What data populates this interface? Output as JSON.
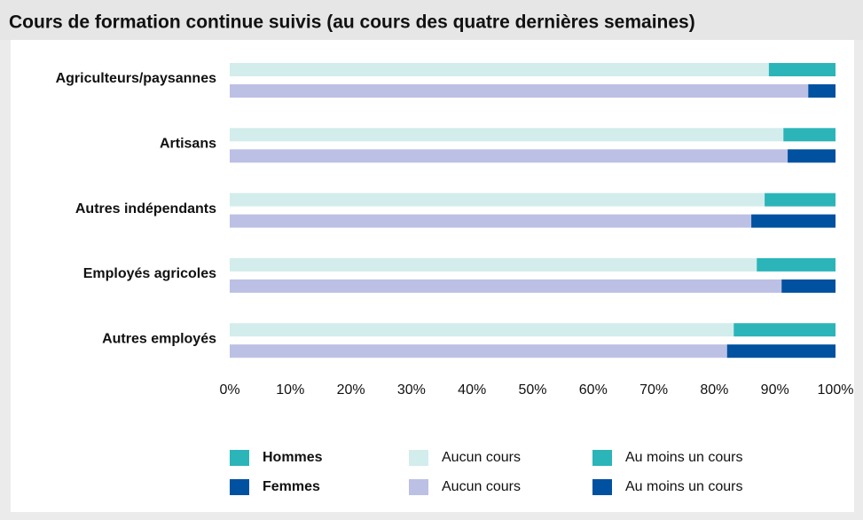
{
  "chart_data": {
    "type": "stacked-barh",
    "title": "Cours de formation continue suivis (au cours des quatre dernières semaines)",
    "categories": [
      "Agriculteurs/paysannes",
      "Artisans",
      "Autres indépendants",
      "Employés agricoles",
      "Autres employés"
    ],
    "groups": [
      "Hommes",
      "Femmes"
    ],
    "series": [
      {
        "name": "Aucun cours",
        "group": "Hommes",
        "color": "#d3ecec",
        "values": [
          89,
          91.4,
          88.3,
          87,
          83.2
        ]
      },
      {
        "name": "Au moins un cours",
        "group": "Hommes",
        "color": "#2bb5b8",
        "values": [
          11,
          8.6,
          11.7,
          13,
          16.8
        ]
      },
      {
        "name": "Aucun cours",
        "group": "Femmes",
        "color": "#bcc0e4",
        "values": [
          95.5,
          92.1,
          86.1,
          91.1,
          82.1
        ]
      },
      {
        "name": "Au moins un cours",
        "group": "Femmes",
        "color": "#0051a0",
        "values": [
          4.5,
          7.9,
          13.9,
          8.9,
          17.9
        ]
      }
    ],
    "xlim": [
      0,
      100
    ],
    "xticks": [
      {
        "value": 0,
        "label": "0%"
      },
      {
        "value": 10,
        "label": "10%"
      },
      {
        "value": 20,
        "label": "20%"
      },
      {
        "value": 30,
        "label": "30%"
      },
      {
        "value": 40,
        "label": "40%"
      },
      {
        "value": 50,
        "label": "50%"
      },
      {
        "value": 60,
        "label": "60%"
      },
      {
        "value": 70,
        "label": "70%"
      },
      {
        "value": 80,
        "label": "80%"
      },
      {
        "value": 90,
        "label": "90%"
      },
      {
        "value": 100,
        "label": "100%"
      }
    ],
    "grid": false
  }
}
